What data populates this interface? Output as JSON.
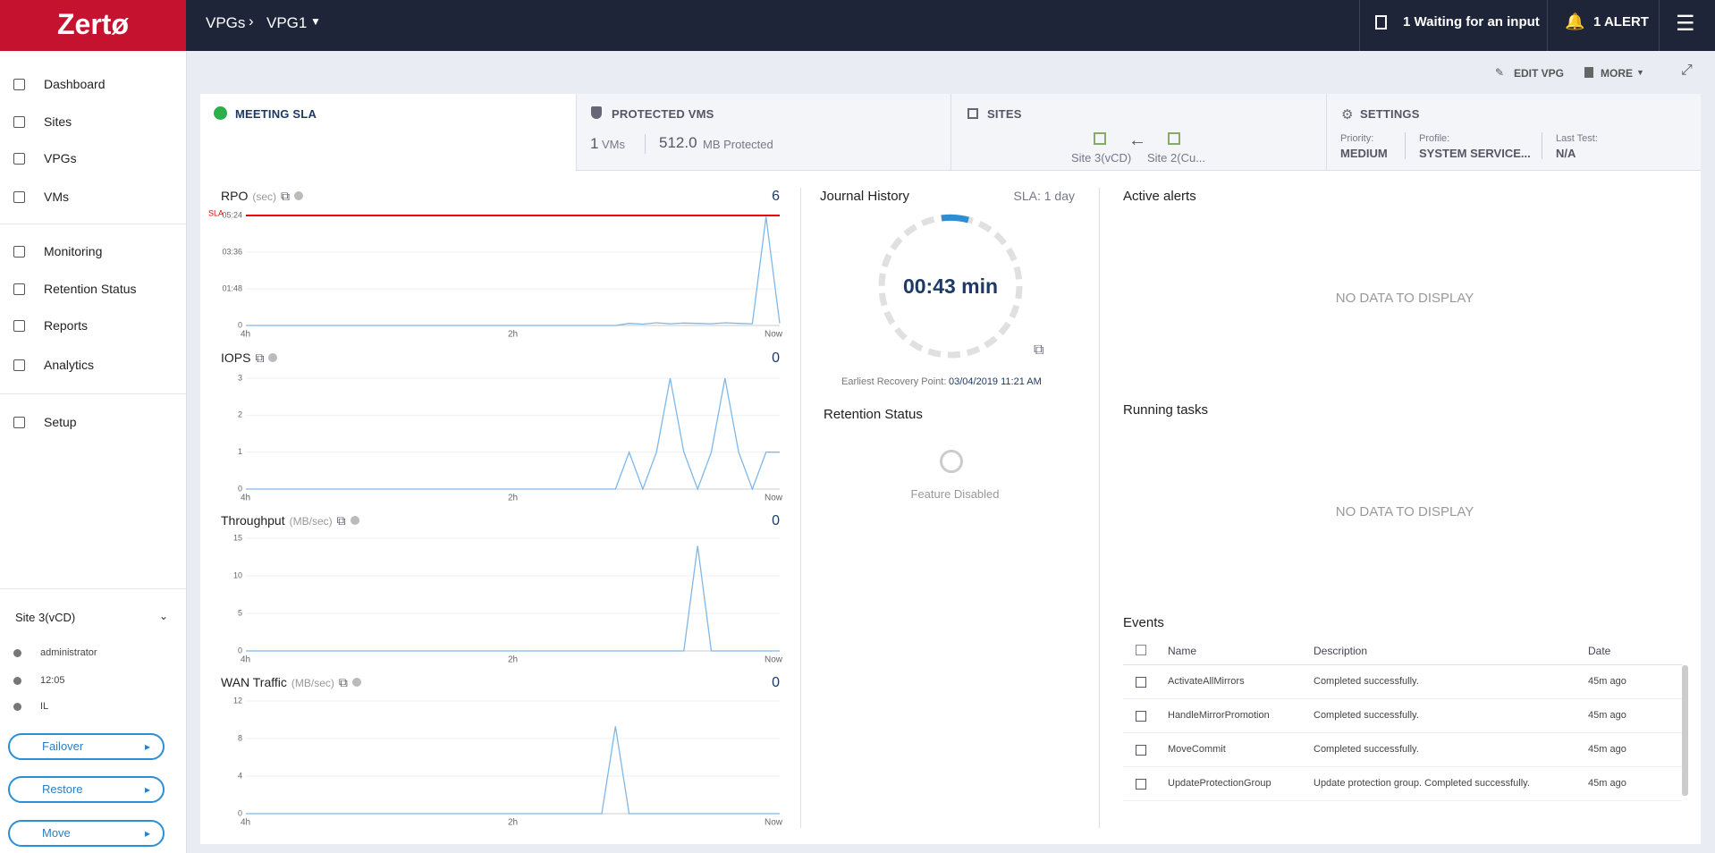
{
  "header": {
    "logo": "Zertø",
    "breadcrumb": [
      "VPGs",
      "VPG1"
    ],
    "waiting": "1 Waiting for an input",
    "alert": "1 ALERT"
  },
  "sidebar": {
    "nav": [
      "Dashboard",
      "Sites",
      "VPGs",
      "VMs",
      "Monitoring",
      "Retention Status",
      "Reports",
      "Analytics",
      "Setup"
    ],
    "site": "Site 3(vCD)",
    "user": "administrator",
    "time": "12:05",
    "location": "IL",
    "actions": [
      "Failover",
      "Restore",
      "Move"
    ]
  },
  "toolbar": [
    "EDIT VPG",
    "MORE"
  ],
  "cards": {
    "sla": "MEETING SLA",
    "protected": {
      "title": "PROTECTED VMS",
      "vms": "1",
      "vms_unit": "VMs",
      "size": "512.0",
      "size_unit": "MB Protected"
    },
    "sites": {
      "title": "SITES",
      "source": "Site 3(vCD)",
      "target": "Site 2(Cu..."
    },
    "settings": {
      "title": "SETTINGS",
      "fields": [
        {
          "label": "Priority:",
          "value": "MEDIUM"
        },
        {
          "label": "Profile:",
          "value": "SYSTEM SERVICE..."
        },
        {
          "label": "Last Test:",
          "value": "N/A"
        }
      ]
    }
  },
  "charts": [
    {
      "type": "line",
      "title": "RPO",
      "unit": "(sec)",
      "current": 6,
      "ylim": [
        0,
        324
      ],
      "yticks": [
        0,
        {
          "value": 108,
          "label": "01:48"
        },
        {
          "value": 216,
          "label": "03:36"
        },
        {
          "value": 324,
          "label": "05:24"
        }
      ],
      "xticks": [
        "4h",
        "2h",
        "Now"
      ],
      "sla": {
        "label": "SLA",
        "value": 324
      },
      "color": "#7fb8e8",
      "values": [
        0,
        0,
        0,
        0,
        0,
        0,
        0,
        0,
        0,
        0,
        0,
        0,
        0,
        0,
        0,
        0,
        0,
        0,
        0,
        0,
        0,
        0,
        0,
        0,
        0,
        0,
        0,
        0,
        6,
        4,
        8,
        5,
        7,
        6,
        5,
        8,
        6,
        5,
        320,
        6
      ]
    },
    {
      "type": "line",
      "title": "IOPS",
      "current": 0,
      "ylim": [
        0,
        3
      ],
      "yticks": [
        0,
        1,
        2,
        3
      ],
      "xticks": [
        "4h",
        "2h",
        "Now"
      ],
      "color": "#7fb8e8",
      "values": [
        0,
        0,
        0,
        0,
        0,
        0,
        0,
        0,
        0,
        0,
        0,
        0,
        0,
        0,
        0,
        0,
        0,
        0,
        0,
        0,
        0,
        0,
        0,
        0,
        0,
        0,
        0,
        0,
        1,
        0,
        1,
        3,
        1,
        0,
        1,
        3,
        1,
        0,
        1,
        1
      ]
    },
    {
      "type": "line",
      "title": "Throughput",
      "unit": "(MB/sec)",
      "current": 0,
      "ylim": [
        0,
        15
      ],
      "yticks": [
        0,
        5,
        10,
        15
      ],
      "xticks": [
        "4h",
        "2h",
        "Now"
      ],
      "color": "#7fb8e8",
      "values": [
        0,
        0,
        0,
        0,
        0,
        0,
        0,
        0,
        0,
        0,
        0,
        0,
        0,
        0,
        0,
        0,
        0,
        0,
        0,
        0,
        0,
        0,
        0,
        0,
        0,
        0,
        0,
        0,
        0,
        0,
        0,
        0,
        0,
        14,
        0,
        0,
        0,
        0,
        0,
        0
      ]
    },
    {
      "type": "line",
      "title": "WAN Traffic",
      "unit": "(MB/sec)",
      "current": 0,
      "ylim": [
        0,
        12
      ],
      "yticks": [
        0,
        4,
        8,
        12
      ],
      "xticks": [
        "4h",
        "2h",
        "Now"
      ],
      "color": "#7fb8e8",
      "values": [
        0,
        0,
        0,
        0,
        0,
        0,
        0,
        0,
        0,
        0,
        0,
        0,
        0,
        0,
        0,
        0,
        0,
        0,
        0,
        0,
        0,
        0,
        0,
        0,
        0,
        0,
        0,
        9.3,
        0,
        0,
        0,
        0,
        0,
        0,
        0,
        0,
        0,
        0,
        0,
        0
      ]
    }
  ],
  "journal": {
    "title": "Journal History",
    "sla": "SLA: 1 day",
    "value": "00:43 min",
    "erp_label": "Earliest Recovery Point:",
    "erp": "03/04/2019 11:21 AM"
  },
  "retention": {
    "title": "Retention Status",
    "status": "Feature Disabled"
  },
  "alerts": {
    "title": "Active alerts",
    "empty": "NO DATA TO DISPLAY"
  },
  "tasks": {
    "title": "Running tasks",
    "empty": "NO DATA TO DISPLAY"
  },
  "events": {
    "title": "Events",
    "columns": [
      "Name",
      "Description",
      "Date"
    ],
    "rows": [
      [
        "ActivateAllMirrors",
        "Completed successfully.",
        "45m ago"
      ],
      [
        "HandleMirrorPromotion",
        "Completed successfully.",
        "45m ago"
      ],
      [
        "MoveCommit",
        "Completed successfully.",
        "45m ago"
      ],
      [
        "UpdateProtectionGroup",
        "Update protection group. Completed successfully.",
        "45m ago"
      ]
    ]
  }
}
